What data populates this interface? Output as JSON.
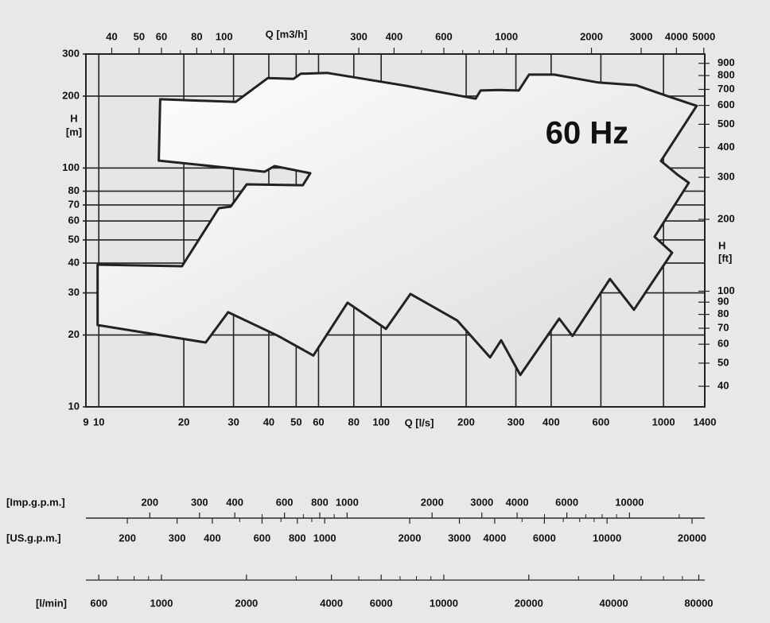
{
  "chart_data": {
    "type": "area",
    "annotation": "60 Hz",
    "x_scale": "log",
    "y_scale": "log",
    "grid": true,
    "xlabel": "Q [l/s]",
    "xlim": [
      9,
      1400
    ],
    "xticks": [
      9,
      10,
      20,
      30,
      40,
      50,
      60,
      80,
      100,
      200,
      300,
      400,
      600,
      1000,
      1400
    ],
    "ylabel_lines": [
      "H",
      "[m]"
    ],
    "ylim": [
      10,
      300
    ],
    "yticks": [
      10,
      20,
      30,
      40,
      50,
      60,
      70,
      80,
      100,
      200,
      300
    ],
    "x2label": "Q [m3/h]",
    "x2lim": [
      32.4,
      5040
    ],
    "x2ticks": [
      40,
      50,
      60,
      80,
      100,
      300,
      400,
      600,
      1000,
      2000,
      3000,
      4000,
      5000
    ],
    "x2_minor_ticks": [
      70,
      90,
      200,
      500,
      700,
      800,
      900
    ],
    "y2label_lines": [
      "H",
      "[ft]"
    ],
    "y2lim": [
      32.8,
      984.3
    ],
    "y2ticks": [
      40,
      50,
      60,
      70,
      80,
      90,
      100,
      200,
      300,
      400,
      500,
      600,
      700,
      800,
      900
    ],
    "series": [
      {
        "color": "#fafafa",
        "edge_color": "#222222",
        "x": [
          16.5,
          30.5,
          39.7,
          48.9,
          51.9,
          64.6,
          122,
          216,
          225,
          261,
          307,
          334,
          410,
          587,
          800,
          1058,
          1310,
          979,
          1122,
          1229,
          930,
          1072,
          786,
          646,
          476,
          427,
          311,
          266,
          243,
          186,
          127,
          104,
          76,
          57.5,
          43.2,
          28.7,
          23.9,
          9.9,
          9.9,
          19.7,
          26.6,
          29.3,
          33.4,
          52.8,
          56.1,
          41.9,
          38.7,
          16.3
        ],
        "values": [
          194,
          189,
          238,
          236,
          248,
          250,
          221,
          195,
          211,
          212,
          211,
          246,
          246,
          228,
          222,
          198,
          182,
          107,
          93.6,
          86.7,
          51.5,
          44.2,
          25.5,
          34.3,
          19.8,
          23.4,
          13.6,
          19.0,
          16.1,
          23.0,
          29.7,
          21.2,
          27.3,
          16.4,
          19.8,
          24.9,
          18.6,
          22.0,
          39.4,
          38.8,
          67.9,
          68.9,
          85.4,
          84.7,
          95.1,
          101.9,
          96.5,
          107.4
        ]
      }
    ],
    "extra_scales": [
      {
        "label": "[Imp.g.p.m.]",
        "lim": [
          118.8,
          18480
        ],
        "ticks": [
          200,
          300,
          400,
          600,
          800,
          1000,
          2000,
          3000,
          4000,
          6000,
          10000
        ],
        "minor_ticks": [
          500,
          700,
          900,
          5000,
          7000,
          8000,
          9000,
          15000
        ]
      },
      {
        "label": "[US.g.p.m.]",
        "lim": [
          142.65,
          22190
        ],
        "ticks": [
          200,
          300,
          400,
          600,
          800,
          1000,
          2000,
          3000,
          4000,
          6000,
          10000,
          20000
        ],
        "minor_ticks": [
          500,
          700,
          900,
          5000,
          7000,
          8000,
          9000
        ]
      },
      {
        "label": "[l/min]",
        "lim": [
          540,
          84000
        ],
        "ticks": [
          600,
          1000,
          2000,
          4000,
          6000,
          10000,
          20000,
          40000,
          80000
        ],
        "minor_ticks": [
          700,
          800,
          900,
          3000,
          5000,
          7000,
          8000,
          9000,
          30000,
          50000,
          60000,
          70000
        ]
      }
    ]
  }
}
